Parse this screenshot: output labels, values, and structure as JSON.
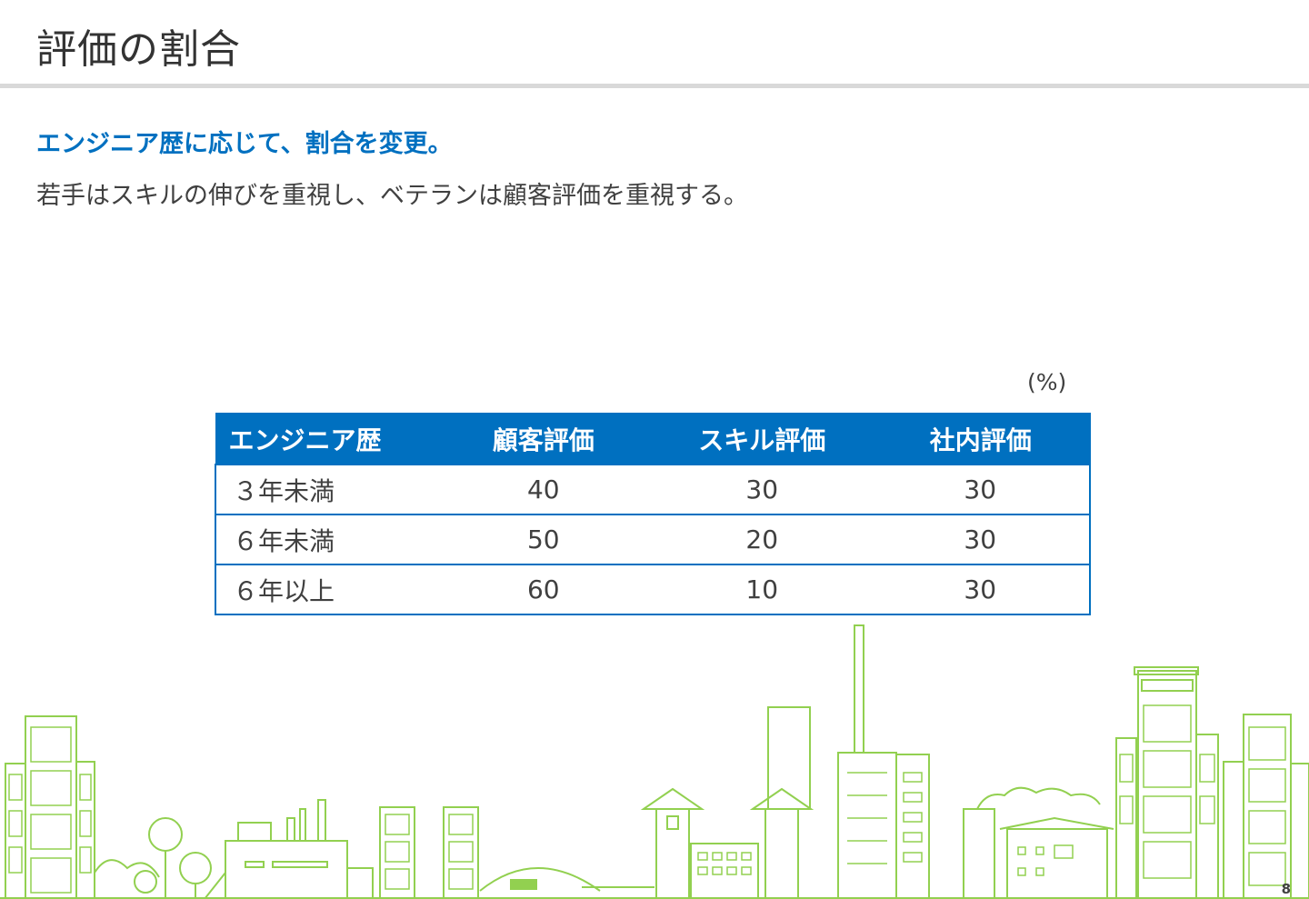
{
  "title": "評価の割合",
  "lead": "エンジニア歴に応じて、割合を変更。",
  "subtext": "若手はスキルの伸びを重視し、ベテランは顧客評価を重視する。",
  "unit": "(%)",
  "table": {
    "headers": [
      "エンジニア歴",
      "顧客評価",
      "スキル評価",
      "社内評価"
    ],
    "rows": [
      [
        "３年未満",
        "40",
        "30",
        "30"
      ],
      [
        "６年未満",
        "50",
        "20",
        "30"
      ],
      [
        "６年以上",
        "60",
        "10",
        "30"
      ]
    ]
  },
  "page_number": "8",
  "colors": {
    "accent": "#0070c0",
    "skyline": "#92d050",
    "rule": "#d9d9d9"
  },
  "decoration": "city-skyline-illustration"
}
